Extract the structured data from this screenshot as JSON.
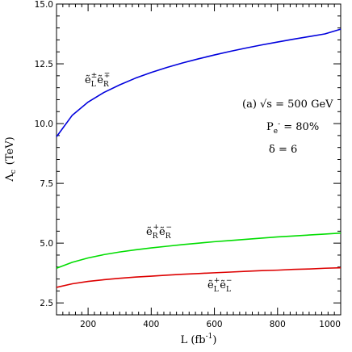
{
  "chart_data": {
    "type": "line",
    "xlabel": "L (fb",
    "xlabel_exp": "-1",
    "xlabel_close": ")",
    "ylabel": "Λ",
    "ylabel_sub": "c",
    "ylabel_unit": "(TeV)",
    "xlim": [
      100,
      1000
    ],
    "ylim": [
      2,
      15
    ],
    "x_ticks": [
      200,
      400,
      600,
      800,
      1000
    ],
    "y_ticks": [
      2.5,
      5.0,
      7.5,
      10.0,
      12.5,
      15.0
    ],
    "x_tick_labels": [
      "200",
      "400",
      "600",
      "800",
      "1000"
    ],
    "y_tick_labels": [
      "2.5",
      "5.0",
      "7.5",
      "10.0",
      "12.5",
      "15.0"
    ],
    "grid": false,
    "annotations": {
      "line1": "(a) √s = 500 GeV",
      "line2_main": "P",
      "line2_sub": "e",
      "line2_sup": "-",
      "line2_rest": " = 80%",
      "line3": "δ = 6"
    },
    "series": [
      {
        "label_base": "ẽ",
        "label_sub1": "L",
        "label_sup1": "±",
        "label_sub2": "R",
        "label_sup2": "∓",
        "color": "#0000dd",
        "x": [
          100,
          150,
          200,
          250,
          300,
          350,
          400,
          450,
          500,
          550,
          600,
          650,
          700,
          750,
          800,
          850,
          900,
          950,
          1000
        ],
        "values": [
          9.45,
          10.35,
          10.9,
          11.3,
          11.62,
          11.9,
          12.14,
          12.35,
          12.54,
          12.71,
          12.87,
          13.02,
          13.16,
          13.29,
          13.41,
          13.53,
          13.64,
          13.75,
          13.95
        ]
      },
      {
        "label_base": "ẽ",
        "label_sub1": "R",
        "label_sup1": "+",
        "label_sub2": "R",
        "label_sup2": "−",
        "color": "#00dd00",
        "x": [
          100,
          150,
          200,
          250,
          300,
          350,
          400,
          450,
          500,
          550,
          600,
          650,
          700,
          750,
          800,
          850,
          900,
          950,
          1000
        ],
        "values": [
          3.95,
          4.2,
          4.38,
          4.52,
          4.63,
          4.72,
          4.8,
          4.87,
          4.94,
          5.0,
          5.06,
          5.11,
          5.16,
          5.21,
          5.26,
          5.3,
          5.34,
          5.38,
          5.42
        ]
      },
      {
        "label_base": "ẽ",
        "label_sub1": "L",
        "label_sup1": "+",
        "label_sub2": "L",
        "label_sup2": "−",
        "color": "#dd0000",
        "x": [
          100,
          150,
          200,
          250,
          300,
          350,
          400,
          450,
          500,
          550,
          600,
          650,
          700,
          750,
          800,
          850,
          900,
          950,
          1000
        ],
        "values": [
          3.15,
          3.3,
          3.4,
          3.47,
          3.53,
          3.58,
          3.62,
          3.66,
          3.7,
          3.73,
          3.76,
          3.79,
          3.82,
          3.85,
          3.87,
          3.9,
          3.92,
          3.95,
          3.97
        ]
      }
    ]
  }
}
